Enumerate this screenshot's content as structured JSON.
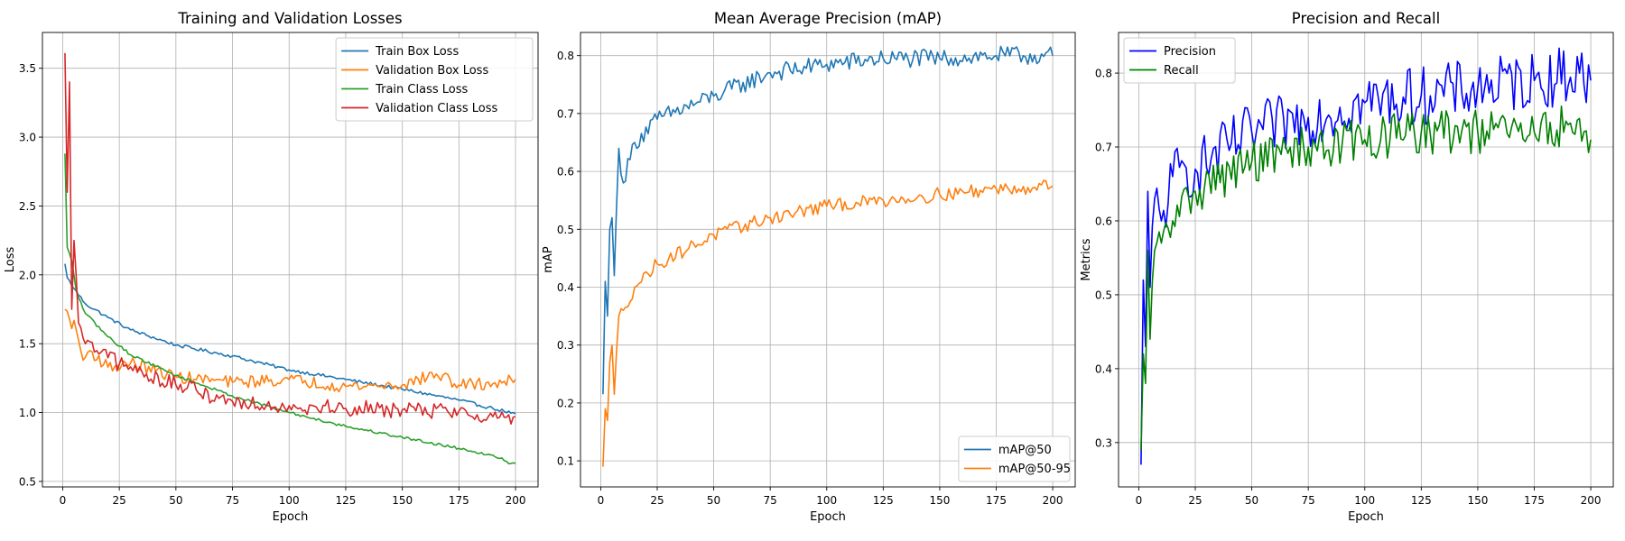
{
  "figure": {
    "background": "#ffffff"
  },
  "chart_data": [
    {
      "type": "line",
      "title": "Training and Validation Losses",
      "xlabel": "Epoch",
      "ylabel": "Loss",
      "xlim": [
        -8.95,
        209.95
      ],
      "ylim": [
        0.46,
        3.76
      ],
      "xticks": [
        0,
        25,
        50,
        75,
        100,
        125,
        150,
        175,
        200
      ],
      "yticks": [
        0.5,
        1.0,
        1.5,
        2.0,
        2.5,
        3.0,
        3.5
      ],
      "ytick_decimals": 1,
      "grid": true,
      "legend": "top-right",
      "series": [
        {
          "name": "Train Box Loss",
          "color": "#1f77b4",
          "keypoints": [
            [
              1,
              2.08
            ],
            [
              2,
              1.98
            ],
            [
              5,
              1.9
            ],
            [
              10,
              1.79
            ],
            [
              20,
              1.69
            ],
            [
              30,
              1.6
            ],
            [
              50,
              1.49
            ],
            [
              75,
              1.41
            ],
            [
              100,
              1.31
            ],
            [
              125,
              1.24
            ],
            [
              150,
              1.17
            ],
            [
              175,
              1.09
            ],
            [
              190,
              1.03
            ],
            [
              200,
              0.99
            ]
          ],
          "noise": 0.012
        },
        {
          "name": "Validation Box Loss",
          "color": "#ff7f0e",
          "keypoints": [
            [
              1,
              1.75
            ],
            [
              3,
              1.68
            ],
            [
              6,
              1.6
            ],
            [
              9,
              1.38
            ],
            [
              12,
              1.45
            ],
            [
              20,
              1.33
            ],
            [
              30,
              1.36
            ],
            [
              50,
              1.26
            ],
            [
              75,
              1.22
            ],
            [
              100,
              1.24
            ],
            [
              125,
              1.19
            ],
            [
              150,
              1.2
            ],
            [
              165,
              1.28
            ],
            [
              175,
              1.2
            ],
            [
              190,
              1.21
            ],
            [
              200,
              1.24
            ]
          ],
          "noise": 0.045
        },
        {
          "name": "Train Class Loss",
          "color": "#2ca02c",
          "keypoints": [
            [
              1,
              2.88
            ],
            [
              2,
              2.2
            ],
            [
              4,
              2.1
            ],
            [
              6,
              1.88
            ],
            [
              10,
              1.72
            ],
            [
              20,
              1.55
            ],
            [
              30,
              1.42
            ],
            [
              50,
              1.27
            ],
            [
              75,
              1.12
            ],
            [
              100,
              1.0
            ],
            [
              125,
              0.9
            ],
            [
              150,
              0.82
            ],
            [
              175,
              0.74
            ],
            [
              190,
              0.69
            ],
            [
              198,
              0.63
            ],
            [
              200,
              0.63
            ]
          ],
          "noise": 0.01
        },
        {
          "name": "Validation Class Loss",
          "color": "#d62728",
          "keypoints": [
            [
              1,
              3.61
            ],
            [
              2,
              2.6
            ],
            [
              3,
              3.4
            ],
            [
              4,
              1.75
            ],
            [
              5,
              2.25
            ],
            [
              7,
              1.65
            ],
            [
              10,
              1.5
            ],
            [
              15,
              1.45
            ],
            [
              25,
              1.35
            ],
            [
              50,
              1.2
            ],
            [
              75,
              1.08
            ],
            [
              100,
              1.05
            ],
            [
              125,
              1.03
            ],
            [
              150,
              1.02
            ],
            [
              175,
              1.01
            ],
            [
              190,
              0.97
            ],
            [
              200,
              0.97
            ]
          ],
          "noise": 0.06
        }
      ]
    },
    {
      "type": "line",
      "title": "Mean Average Precision (mAP)",
      "xlabel": "Epoch",
      "ylabel": "mAP",
      "xlim": [
        -8.95,
        209.95
      ],
      "ylim": [
        0.055,
        0.84
      ],
      "xticks": [
        0,
        25,
        50,
        75,
        100,
        125,
        150,
        175,
        200
      ],
      "yticks": [
        0.1,
        0.2,
        0.3,
        0.4,
        0.5,
        0.6,
        0.7,
        0.8
      ],
      "ytick_decimals": 1,
      "grid": true,
      "legend": "bottom-right",
      "series": [
        {
          "name": "mAP@50",
          "color": "#1f77b4",
          "keypoints": [
            [
              1,
              0.215
            ],
            [
              2,
              0.41
            ],
            [
              3,
              0.35
            ],
            [
              4,
              0.5
            ],
            [
              5,
              0.52
            ],
            [
              6,
              0.42
            ],
            [
              8,
              0.64
            ],
            [
              10,
              0.58
            ],
            [
              15,
              0.65
            ],
            [
              25,
              0.69
            ],
            [
              50,
              0.73
            ],
            [
              75,
              0.77
            ],
            [
              100,
              0.785
            ],
            [
              125,
              0.795
            ],
            [
              150,
              0.795
            ],
            [
              175,
              0.8
            ],
            [
              200,
              0.8
            ]
          ],
          "noise": 0.016
        },
        {
          "name": "mAP@50-95",
          "color": "#ff7f0e",
          "keypoints": [
            [
              1,
              0.09
            ],
            [
              2,
              0.19
            ],
            [
              3,
              0.17
            ],
            [
              4,
              0.27
            ],
            [
              5,
              0.3
            ],
            [
              6,
              0.215
            ],
            [
              8,
              0.35
            ],
            [
              10,
              0.36
            ],
            [
              15,
              0.4
            ],
            [
              25,
              0.44
            ],
            [
              50,
              0.49
            ],
            [
              75,
              0.52
            ],
            [
              100,
              0.54
            ],
            [
              125,
              0.55
            ],
            [
              150,
              0.56
            ],
            [
              175,
              0.57
            ],
            [
              200,
              0.575
            ]
          ],
          "noise": 0.012
        }
      ]
    },
    {
      "type": "line",
      "title": "Precision and Recall",
      "xlabel": "Epoch",
      "ylabel": "Metrics",
      "xlim": [
        -8.95,
        209.95
      ],
      "ylim": [
        0.24,
        0.855
      ],
      "xticks": [
        0,
        25,
        50,
        75,
        100,
        125,
        150,
        175,
        200
      ],
      "yticks": [
        0.3,
        0.4,
        0.5,
        0.6,
        0.7,
        0.8
      ],
      "ytick_decimals": 1,
      "grid": true,
      "legend": "top-left",
      "series": [
        {
          "name": "Precision",
          "color": "#0000ff",
          "keypoints": [
            [
              1,
              0.27
            ],
            [
              2,
              0.52
            ],
            [
              3,
              0.43
            ],
            [
              4,
              0.64
            ],
            [
              5,
              0.51
            ],
            [
              7,
              0.63
            ],
            [
              10,
              0.6
            ],
            [
              15,
              0.66
            ],
            [
              25,
              0.67
            ],
            [
              50,
              0.72
            ],
            [
              75,
              0.74
            ],
            [
              100,
              0.76
            ],
            [
              125,
              0.77
            ],
            [
              150,
              0.78
            ],
            [
              175,
              0.79
            ],
            [
              195,
              0.8
            ],
            [
              200,
              0.79
            ]
          ],
          "noise": 0.04
        },
        {
          "name": "Recall",
          "color": "#008000",
          "keypoints": [
            [
              1,
              0.29
            ],
            [
              2,
              0.42
            ],
            [
              3,
              0.38
            ],
            [
              4,
              0.56
            ],
            [
              5,
              0.44
            ],
            [
              7,
              0.56
            ],
            [
              10,
              0.57
            ],
            [
              15,
              0.6
            ],
            [
              25,
              0.64
            ],
            [
              50,
              0.68
            ],
            [
              75,
              0.7
            ],
            [
              100,
              0.71
            ],
            [
              125,
              0.72
            ],
            [
              150,
              0.72
            ],
            [
              175,
              0.72
            ],
            [
              190,
              0.73
            ],
            [
              200,
              0.71
            ]
          ],
          "noise": 0.03
        }
      ]
    }
  ]
}
